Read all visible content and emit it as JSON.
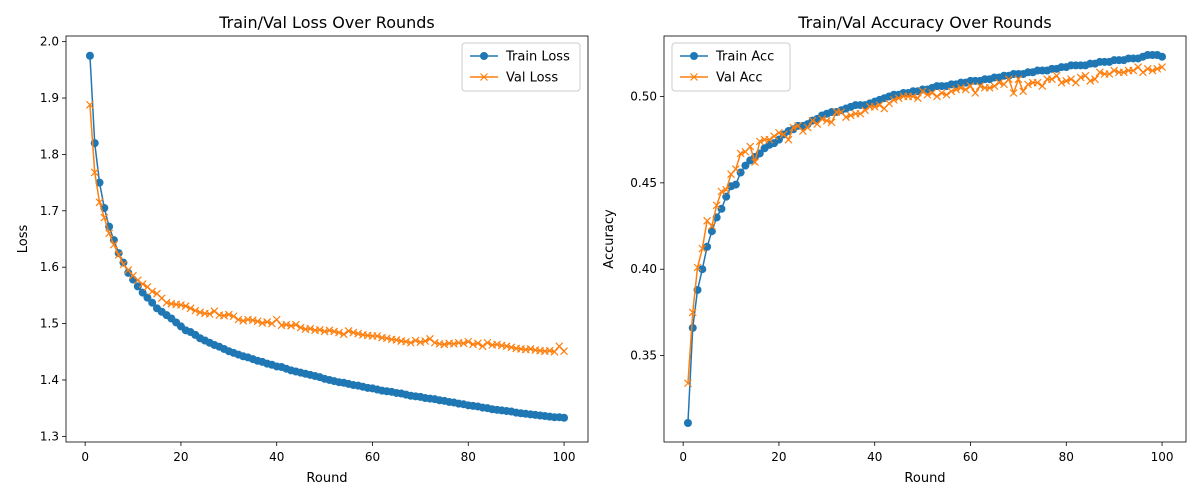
{
  "chart_data": [
    {
      "type": "line",
      "title": "Train/Val Loss Over Rounds",
      "xlabel": "Round",
      "ylabel": "Loss",
      "xlim": [
        -4,
        105
      ],
      "ylim": [
        1.29,
        2.01
      ],
      "xticks": [
        0,
        20,
        40,
        60,
        80,
        100
      ],
      "yticks": [
        1.3,
        1.4,
        1.5,
        1.6,
        1.7,
        1.8,
        1.9,
        2.0
      ],
      "ytick_decimals": 1,
      "grid": false,
      "legend": "top-right",
      "series": [
        {
          "name": "Train Loss",
          "color": "#1f77b4",
          "marker": "circle",
          "x": [
            1,
            2,
            3,
            4,
            5,
            6,
            7,
            8,
            9,
            10,
            11,
            12,
            13,
            14,
            15,
            16,
            17,
            18,
            19,
            20,
            21,
            22,
            23,
            24,
            25,
            26,
            27,
            28,
            29,
            30,
            31,
            32,
            33,
            34,
            35,
            36,
            37,
            38,
            39,
            40,
            41,
            42,
            43,
            44,
            45,
            46,
            47,
            48,
            49,
            50,
            51,
            52,
            53,
            54,
            55,
            56,
            57,
            58,
            59,
            60,
            61,
            62,
            63,
            64,
            65,
            66,
            67,
            68,
            69,
            70,
            71,
            72,
            73,
            74,
            75,
            76,
            77,
            78,
            79,
            80,
            81,
            82,
            83,
            84,
            85,
            86,
            87,
            88,
            89,
            90,
            91,
            92,
            93,
            94,
            95,
            96,
            97,
            98,
            99,
            100
          ],
          "values": [
            1.975,
            1.82,
            1.75,
            1.705,
            1.672,
            1.648,
            1.625,
            1.608,
            1.59,
            1.578,
            1.566,
            1.555,
            1.546,
            1.537,
            1.527,
            1.521,
            1.515,
            1.509,
            1.502,
            1.495,
            1.488,
            1.485,
            1.48,
            1.474,
            1.47,
            1.466,
            1.462,
            1.459,
            1.455,
            1.451,
            1.448,
            1.445,
            1.442,
            1.44,
            1.437,
            1.434,
            1.432,
            1.429,
            1.427,
            1.424,
            1.423,
            1.42,
            1.417,
            1.415,
            1.413,
            1.411,
            1.409,
            1.407,
            1.405,
            1.402,
            1.4,
            1.398,
            1.396,
            1.395,
            1.393,
            1.391,
            1.39,
            1.388,
            1.386,
            1.385,
            1.383,
            1.381,
            1.38,
            1.379,
            1.377,
            1.376,
            1.374,
            1.372,
            1.371,
            1.37,
            1.368,
            1.367,
            1.366,
            1.364,
            1.363,
            1.361,
            1.36,
            1.358,
            1.357,
            1.355,
            1.354,
            1.353,
            1.351,
            1.35,
            1.348,
            1.347,
            1.346,
            1.345,
            1.344,
            1.342,
            1.341,
            1.34,
            1.339,
            1.338,
            1.337,
            1.336,
            1.335,
            1.334,
            1.334,
            1.333
          ]
        },
        {
          "name": "Val Loss",
          "color": "#ff7f0e",
          "marker": "x",
          "x": [
            1,
            2,
            3,
            4,
            5,
            6,
            7,
            8,
            9,
            10,
            11,
            12,
            13,
            14,
            15,
            16,
            17,
            18,
            19,
            20,
            21,
            22,
            23,
            24,
            25,
            26,
            27,
            28,
            29,
            30,
            31,
            32,
            33,
            34,
            35,
            36,
            37,
            38,
            39,
            40,
            41,
            42,
            43,
            44,
            45,
            46,
            47,
            48,
            49,
            50,
            51,
            52,
            53,
            54,
            55,
            56,
            57,
            58,
            59,
            60,
            61,
            62,
            63,
            64,
            65,
            66,
            67,
            68,
            69,
            70,
            71,
            72,
            73,
            74,
            75,
            76,
            77,
            78,
            79,
            80,
            81,
            82,
            83,
            84,
            85,
            86,
            87,
            88,
            89,
            90,
            91,
            92,
            93,
            94,
            95,
            96,
            97,
            98,
            99,
            100
          ],
          "values": [
            1.888,
            1.768,
            1.715,
            1.688,
            1.66,
            1.64,
            1.622,
            1.605,
            1.595,
            1.585,
            1.577,
            1.57,
            1.565,
            1.557,
            1.553,
            1.545,
            1.537,
            1.535,
            1.534,
            1.533,
            1.531,
            1.527,
            1.523,
            1.52,
            1.518,
            1.517,
            1.522,
            1.515,
            1.514,
            1.516,
            1.513,
            1.507,
            1.505,
            1.507,
            1.506,
            1.504,
            1.501,
            1.503,
            1.5,
            1.507,
            1.497,
            1.498,
            1.496,
            1.498,
            1.493,
            1.49,
            1.491,
            1.488,
            1.489,
            1.486,
            1.488,
            1.486,
            1.484,
            1.481,
            1.487,
            1.484,
            1.482,
            1.48,
            1.479,
            1.478,
            1.478,
            1.475,
            1.474,
            1.472,
            1.471,
            1.469,
            1.468,
            1.466,
            1.47,
            1.467,
            1.469,
            1.473,
            1.466,
            1.464,
            1.463,
            1.465,
            1.464,
            1.466,
            1.465,
            1.468,
            1.463,
            1.465,
            1.46,
            1.466,
            1.462,
            1.463,
            1.461,
            1.46,
            1.458,
            1.456,
            1.455,
            1.454,
            1.455,
            1.453,
            1.452,
            1.451,
            1.452,
            1.45,
            1.46,
            1.451
          ]
        }
      ]
    },
    {
      "type": "line",
      "title": "Train/Val Accuracy Over Rounds",
      "xlabel": "Round",
      "ylabel": "Accuracy",
      "xlim": [
        -4,
        105
      ],
      "ylim": [
        0.3,
        0.535
      ],
      "xticks": [
        0,
        20,
        40,
        60,
        80,
        100
      ],
      "yticks": [
        0.35,
        0.4,
        0.45,
        0.5
      ],
      "ytick_decimals": 2,
      "grid": false,
      "legend": "top-left",
      "series": [
        {
          "name": "Train Acc",
          "color": "#1f77b4",
          "marker": "circle",
          "x": [
            1,
            2,
            3,
            4,
            5,
            6,
            7,
            8,
            9,
            10,
            11,
            12,
            13,
            14,
            15,
            16,
            17,
            18,
            19,
            20,
            21,
            22,
            23,
            24,
            25,
            26,
            27,
            28,
            29,
            30,
            31,
            32,
            33,
            34,
            35,
            36,
            37,
            38,
            39,
            40,
            41,
            42,
            43,
            44,
            45,
            46,
            47,
            48,
            49,
            50,
            51,
            52,
            53,
            54,
            55,
            56,
            57,
            58,
            59,
            60,
            61,
            62,
            63,
            64,
            65,
            66,
            67,
            68,
            69,
            70,
            71,
            72,
            73,
            74,
            75,
            76,
            77,
            78,
            79,
            80,
            81,
            82,
            83,
            84,
            85,
            86,
            87,
            88,
            89,
            90,
            91,
            92,
            93,
            94,
            95,
            96,
            97,
            98,
            99,
            100
          ],
          "values": [
            0.311,
            0.366,
            0.388,
            0.4,
            0.413,
            0.422,
            0.43,
            0.435,
            0.442,
            0.448,
            0.449,
            0.456,
            0.46,
            0.463,
            0.465,
            0.467,
            0.47,
            0.472,
            0.473,
            0.475,
            0.478,
            0.48,
            0.481,
            0.483,
            0.483,
            0.484,
            0.486,
            0.487,
            0.489,
            0.49,
            0.491,
            0.491,
            0.492,
            0.493,
            0.494,
            0.495,
            0.495,
            0.495,
            0.496,
            0.497,
            0.498,
            0.499,
            0.5,
            0.501,
            0.501,
            0.502,
            0.502,
            0.503,
            0.503,
            0.504,
            0.504,
            0.505,
            0.506,
            0.506,
            0.506,
            0.507,
            0.507,
            0.508,
            0.508,
            0.509,
            0.509,
            0.509,
            0.51,
            0.51,
            0.511,
            0.511,
            0.512,
            0.512,
            0.513,
            0.513,
            0.513,
            0.514,
            0.514,
            0.515,
            0.515,
            0.515,
            0.516,
            0.516,
            0.517,
            0.517,
            0.518,
            0.518,
            0.518,
            0.518,
            0.519,
            0.519,
            0.52,
            0.52,
            0.52,
            0.521,
            0.521,
            0.521,
            0.522,
            0.522,
            0.522,
            0.523,
            0.524,
            0.524,
            0.524,
            0.523
          ]
        },
        {
          "name": "Val Acc",
          "color": "#ff7f0e",
          "marker": "x",
          "x": [
            1,
            2,
            3,
            4,
            5,
            6,
            7,
            8,
            9,
            10,
            11,
            12,
            13,
            14,
            15,
            16,
            17,
            18,
            19,
            20,
            21,
            22,
            23,
            24,
            25,
            26,
            27,
            28,
            29,
            30,
            31,
            32,
            33,
            34,
            35,
            36,
            37,
            38,
            39,
            40,
            41,
            42,
            43,
            44,
            45,
            46,
            47,
            48,
            49,
            50,
            51,
            52,
            53,
            54,
            55,
            56,
            57,
            58,
            59,
            60,
            61,
            62,
            63,
            64,
            65,
            66,
            67,
            68,
            69,
            70,
            71,
            72,
            73,
            74,
            75,
            76,
            77,
            78,
            79,
            80,
            81,
            82,
            83,
            84,
            85,
            86,
            87,
            88,
            89,
            90,
            91,
            92,
            93,
            94,
            95,
            96,
            97,
            98,
            99,
            100
          ],
          "values": [
            0.334,
            0.375,
            0.401,
            0.412,
            0.428,
            0.425,
            0.437,
            0.445,
            0.446,
            0.455,
            0.458,
            0.467,
            0.468,
            0.471,
            0.462,
            0.474,
            0.475,
            0.475,
            0.477,
            0.479,
            0.478,
            0.475,
            0.482,
            0.483,
            0.48,
            0.482,
            0.486,
            0.484,
            0.487,
            0.486,
            0.485,
            0.491,
            0.491,
            0.488,
            0.489,
            0.49,
            0.49,
            0.492,
            0.494,
            0.494,
            0.495,
            0.493,
            0.496,
            0.498,
            0.499,
            0.5,
            0.5,
            0.5,
            0.499,
            0.503,
            0.501,
            0.502,
            0.5,
            0.502,
            0.501,
            0.503,
            0.504,
            0.505,
            0.504,
            0.506,
            0.502,
            0.506,
            0.505,
            0.505,
            0.506,
            0.508,
            0.507,
            0.51,
            0.502,
            0.51,
            0.503,
            0.507,
            0.508,
            0.508,
            0.506,
            0.51,
            0.51,
            0.512,
            0.508,
            0.509,
            0.51,
            0.508,
            0.511,
            0.512,
            0.509,
            0.51,
            0.514,
            0.513,
            0.513,
            0.515,
            0.514,
            0.514,
            0.515,
            0.515,
            0.517,
            0.514,
            0.516,
            0.515,
            0.516,
            0.517
          ]
        }
      ]
    }
  ]
}
